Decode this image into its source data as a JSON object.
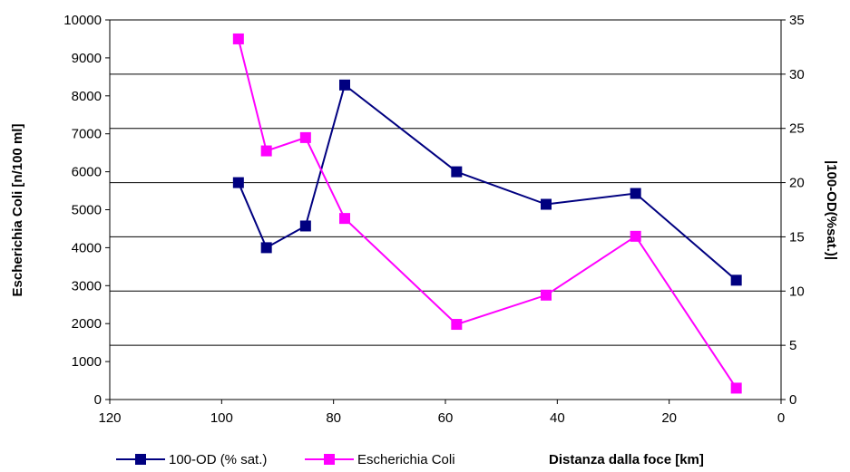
{
  "chart_data": {
    "type": "line",
    "xlabel": "Distanza dalla foce [km]",
    "ylabel_left": "Escherichia Coli [n/100 ml]",
    "ylabel_right": "|100-OD(%sat.)|",
    "xlim": [
      120,
      0
    ],
    "x_ticks": [
      "120",
      "100",
      "80",
      "60",
      "40",
      "20",
      "0"
    ],
    "ylim_left": [
      0,
      10000
    ],
    "y_left_ticks": [
      "0",
      "1000",
      "2000",
      "3000",
      "4000",
      "5000",
      "6000",
      "7000",
      "8000",
      "9000",
      "10000"
    ],
    "ylim_right": [
      0,
      35
    ],
    "y_right_ticks": [
      "0",
      "5",
      "10",
      "15",
      "20",
      "25",
      "30",
      "35"
    ],
    "grid": "horizontal at right-axis ticks",
    "legend_position": "bottom-left",
    "series": [
      {
        "name": "100-OD (% sat.)",
        "axis": "right",
        "color": "#000080",
        "x": [
          97,
          92,
          85,
          78,
          58,
          42,
          26,
          8
        ],
        "y": [
          20,
          14,
          16,
          29,
          21,
          18,
          19,
          11
        ]
      },
      {
        "name": "Escherichia Coli",
        "axis": "left",
        "color": "#FF00FF",
        "x": [
          97,
          92,
          85,
          78,
          58,
          42,
          26,
          8
        ],
        "y": [
          9500,
          6550,
          6900,
          4770,
          1980,
          2750,
          4300,
          300
        ]
      }
    ]
  }
}
